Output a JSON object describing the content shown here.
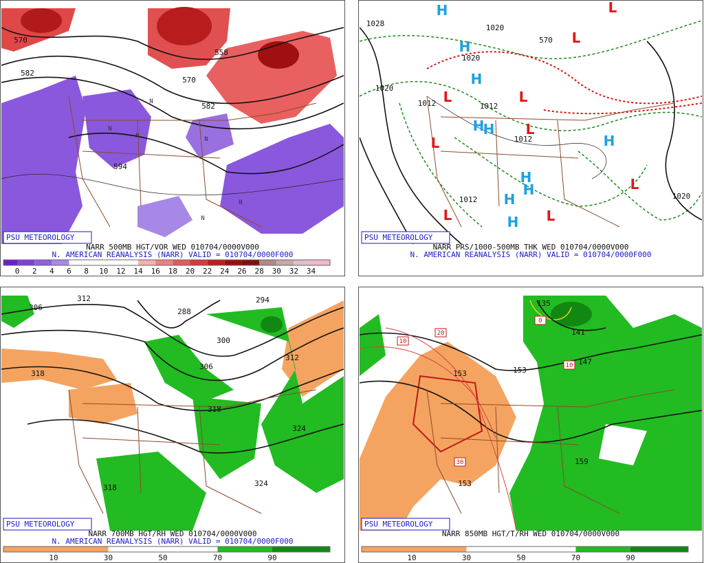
{
  "panels": [
    {
      "logo": "PSU METEOROLOGY",
      "title": "NARR 500MB HGT/VOR WED 010704/0000V000",
      "subtitle": "N. AMERICAN REANALYSIS (NARR) VALID = 010704/0000F000",
      "colorbar": {
        "labels": [
          "0",
          "2",
          "4",
          "6",
          "8",
          "10",
          "12",
          "14",
          "16",
          "18",
          "20",
          "22",
          "24",
          "26",
          "28",
          "30",
          "32",
          "34"
        ],
        "colors": [
          "#6a1fd0",
          "#7d3fd8",
          "#9060dc",
          "#a888e6",
          "#ffffff",
          "#ffffff",
          "#ffffff",
          "#ffffff",
          "#f4b0b0",
          "#ec8080",
          "#e45a5a",
          "#d83a3a",
          "#c01c1c",
          "#a00c0c",
          "#801010",
          "#b08888",
          "#c8a8a8",
          "#e0c0c8",
          "#f0b8c8"
        ]
      },
      "contour_labels": [
        "570",
        "558",
        "570",
        "582",
        "594",
        "582"
      ],
      "centers": [
        "N",
        "N",
        "N",
        "N",
        "N",
        "N"
      ]
    },
    {
      "logo": "PSU METEOROLOGY",
      "title": "NARR PRS/1000-500MB THK WED 010704/0000V000",
      "subtitle": "N. AMERICAN REANALYSIS (NARR) VALID = 010704/0000F000",
      "contour_labels": [
        "1028",
        "1020",
        "1020",
        "1020",
        "1012",
        "1012",
        "1012",
        "1012",
        "1020",
        "570"
      ],
      "centers": [
        "H",
        "H",
        "H",
        "H",
        "H",
        "H",
        "H",
        "H",
        "H",
        "H",
        "L",
        "L",
        "L",
        "L",
        "L",
        "L",
        "L",
        "L",
        "L"
      ]
    },
    {
      "logo": "PSU METEOROLOGY",
      "title": "NARR 700MB HGT/RH WED 010704/0000V000",
      "subtitle": "N. AMERICAN REANALYSIS (NARR) VALID = 010704/0000F000",
      "colorbar": {
        "labels": [
          "10",
          "30",
          "50",
          "70",
          "90"
        ],
        "colors": [
          "#f4a460",
          "#f4a460",
          "#ffffff",
          "#ffffff",
          "#22bb22",
          "#118811"
        ]
      },
      "contour_labels": [
        "312",
        "306",
        "294",
        "288",
        "300",
        "318",
        "318",
        "312",
        "306",
        "324",
        "324",
        "318"
      ]
    },
    {
      "logo": "PSU METEOROLOGY",
      "title": "NARR 850MB HGT/T/RH WED 010704/0000V000",
      "colorbar": {
        "labels": [
          "10",
          "30",
          "50",
          "70",
          "90"
        ],
        "colors": [
          "#f4a460",
          "#f4a460",
          "#ffffff",
          "#ffffff",
          "#22bb22",
          "#118811"
        ]
      },
      "contour_labels": [
        "135",
        "141",
        "147",
        "153",
        "153",
        "159",
        "153"
      ],
      "temp_labels": [
        "10",
        "20",
        "30",
        "10",
        "0"
      ]
    }
  ]
}
